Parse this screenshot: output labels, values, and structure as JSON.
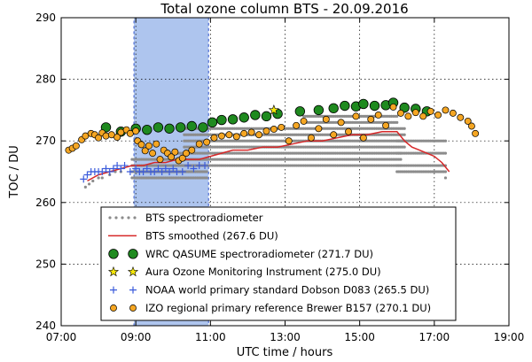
{
  "chart_data": {
    "type": "scatter",
    "title": "Total ozone column BTS - 20.09.2016",
    "xlabel": "UTC time / hours",
    "ylabel": "TOC / DU",
    "xlim": [
      7,
      19
    ],
    "ylim": [
      240,
      290
    ],
    "xticks": [
      7,
      9,
      11,
      13,
      15,
      17,
      19
    ],
    "xtick_labels": [
      "07:00",
      "09:00",
      "11:00",
      "13:00",
      "15:00",
      "17:00",
      "19:00"
    ],
    "yticks": [
      240,
      250,
      260,
      270,
      280,
      290
    ],
    "ytick_labels": [
      "240",
      "250",
      "260",
      "270",
      "280",
      "290"
    ],
    "grid": true,
    "legend_position": "lower-center",
    "shaded_span": {
      "x": [
        8.95,
        10.95
      ],
      "color": "#aec5ee"
    },
    "series": [
      {
        "name": "BTS spectroradiometer",
        "marker": "small-dot",
        "color": "#8c8c8c",
        "bands": [
          {
            "x_start": 8.9,
            "x_end": 10.9,
            "y_values": [
              264,
              265,
              266,
              267
            ]
          },
          {
            "x_start": 10.0,
            "x_end": 16.1,
            "y_values": [
              266,
              267,
              268
            ]
          },
          {
            "x_start": 10.3,
            "x_end": 16.2,
            "y_values": [
              269,
              270,
              271,
              272
            ]
          },
          {
            "x_start": 13.5,
            "x_end": 16.0,
            "y_values": [
              273,
              274
            ]
          },
          {
            "x_start": 16.0,
            "x_end": 17.3,
            "y_values": [
              265,
              266,
              268,
              270
            ]
          }
        ],
        "x": [
          7.65,
          7.75,
          7.85,
          8.0,
          8.1,
          8.3,
          8.45,
          8.6,
          17.3
        ],
        "y": [
          262.5,
          263,
          263.5,
          264,
          264,
          264.5,
          265,
          265,
          264
        ]
      },
      {
        "name": "BTS smoothed (267.6 DU)",
        "marker": "line",
        "color": "#d62728",
        "x": [
          7.7,
          8.0,
          8.3,
          8.6,
          8.9,
          9.2,
          9.5,
          9.8,
          10.1,
          10.4,
          10.7,
          11.0,
          11.3,
          11.6,
          12.0,
          12.4,
          12.8,
          13.2,
          13.6,
          14.0,
          14.4,
          14.8,
          15.2,
          15.6,
          16.0,
          16.2,
          16.4,
          16.6,
          16.8,
          17.0,
          17.2,
          17.4
        ],
        "y": [
          263.5,
          264.5,
          265,
          265.5,
          266,
          266,
          266.5,
          266.5,
          267,
          267,
          267,
          267.5,
          268,
          268.5,
          268.5,
          269,
          269,
          269.5,
          270,
          270,
          270.5,
          271,
          271,
          271.5,
          271.5,
          270,
          269,
          268.5,
          268,
          267.5,
          266.5,
          265
        ]
      },
      {
        "name": "WRC QASUME spectroradiometer (271.7 DU)",
        "marker": "big-circle",
        "color": "#1f8a1f",
        "x": [
          8.2,
          8.6,
          9.0,
          9.3,
          9.6,
          9.9,
          10.2,
          10.5,
          10.8,
          11.05,
          11.3,
          11.6,
          11.9,
          12.2,
          12.5,
          12.8,
          13.4,
          13.9,
          14.3,
          14.6,
          14.9,
          15.1,
          15.4,
          15.7,
          15.9,
          16.2,
          16.5,
          16.8
        ],
        "y": [
          272.2,
          271.5,
          272,
          271.8,
          272.2,
          272.0,
          272.2,
          272.4,
          272.2,
          273.0,
          273.4,
          273.5,
          273.8,
          274.2,
          274.0,
          274.4,
          274.8,
          275.0,
          275.3,
          275.7,
          275.6,
          276.0,
          275.7,
          275.8,
          276.2,
          275.4,
          275.2,
          274.8
        ]
      },
      {
        "name": "Aura Ozone Monitoring Instrument (275.0 DU)",
        "marker": "star",
        "color": "#f5e60a",
        "x": [
          12.7
        ],
        "y": [
          275.0
        ]
      },
      {
        "name": "NOAA world primary standard Dobson D083 (265.5 DU)",
        "marker": "plus",
        "color": "#3b5bdb",
        "x": [
          7.6,
          7.7,
          7.8,
          7.9,
          8.0,
          8.1,
          8.2,
          8.3,
          8.4,
          8.5,
          8.6,
          8.7,
          8.85,
          9.0,
          9.1,
          9.2,
          9.3,
          9.4,
          9.5,
          9.6,
          9.7,
          9.8,
          9.9,
          10.0,
          10.1,
          10.25,
          10.4,
          10.55,
          10.7,
          10.85
        ],
        "y": [
          263.8,
          264.5,
          265.0,
          265.0,
          265.0,
          265.0,
          265.5,
          265.0,
          265.5,
          266.0,
          265.5,
          266.0,
          265.0,
          265.5,
          265.0,
          265.0,
          265.5,
          265.0,
          265.0,
          265.5,
          265.0,
          265.5,
          265.0,
          265.5,
          265.0,
          265.0,
          266.0,
          265.5,
          266.0,
          266.0
        ]
      },
      {
        "name": "IZO regional primary reference Brewer B157 (270.1 DU)",
        "marker": "circle",
        "color": "#f5a623",
        "x": [
          7.2,
          7.3,
          7.4,
          7.55,
          7.65,
          7.8,
          7.9,
          8.0,
          8.1,
          8.2,
          8.35,
          8.5,
          8.6,
          8.75,
          8.85,
          9.0,
          9.05,
          9.15,
          9.25,
          9.35,
          9.45,
          9.55,
          9.65,
          9.75,
          9.85,
          9.95,
          10.05,
          10.15,
          10.25,
          10.35,
          10.5,
          10.7,
          10.9,
          11.1,
          11.3,
          11.5,
          11.7,
          11.9,
          12.1,
          12.3,
          12.5,
          12.7,
          12.9,
          13.1,
          13.3,
          13.5,
          13.7,
          13.9,
          14.1,
          14.3,
          14.5,
          14.7,
          14.9,
          15.1,
          15.3,
          15.5,
          15.7,
          15.9,
          16.1,
          16.3,
          16.5,
          16.7,
          16.9,
          17.1,
          17.3,
          17.5,
          17.7,
          17.9,
          18.0,
          18.1
        ],
        "y": [
          268.5,
          268.8,
          269.2,
          270.2,
          270.8,
          271.2,
          271.0,
          270.5,
          271.3,
          270.8,
          271.0,
          270.6,
          271.4,
          271.8,
          271.2,
          271.6,
          270.0,
          269.4,
          268.4,
          269.2,
          268.0,
          269.5,
          267.0,
          268.5,
          268.0,
          267.4,
          268.2,
          266.8,
          267.2,
          268.0,
          268.5,
          269.5,
          269.8,
          270.5,
          270.8,
          271.0,
          270.7,
          271.2,
          271.4,
          271.0,
          271.6,
          271.9,
          272.2,
          270.0,
          272.5,
          273.2,
          270.5,
          272.0,
          273.5,
          271.0,
          273.0,
          271.5,
          274.0,
          270.5,
          273.5,
          274.2,
          272.5,
          275.5,
          274.5,
          274.0,
          274.6,
          274.0,
          274.8,
          274.2,
          275.0,
          274.5,
          273.8,
          273.2,
          272.4,
          271.2
        ]
      }
    ]
  }
}
